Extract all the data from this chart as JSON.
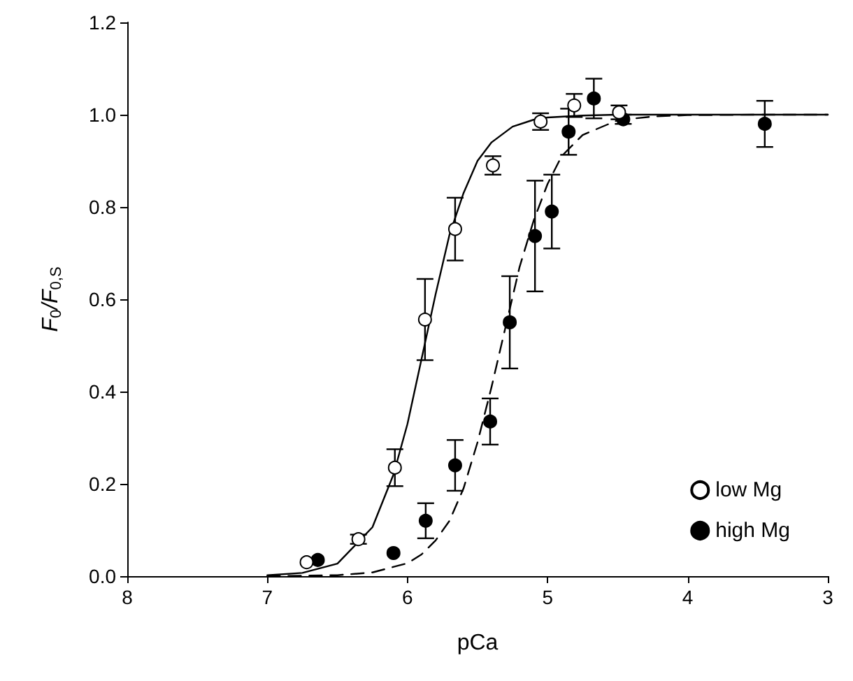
{
  "chart_data": {
    "type": "scatter",
    "xlabel": "pCa",
    "ylabel": "F$_{0}$/F$_{0,S}$",
    "xlim": [
      8,
      3
    ],
    "xticks": [
      8,
      7,
      6,
      5,
      4,
      3
    ],
    "ylim": [
      0,
      1.2
    ],
    "yticks": [
      {
        "value": 0,
        "label": "0.0"
      },
      0.2,
      0.4,
      0.6,
      0.8,
      {
        "value": 1,
        "label": "1.0"
      },
      1.2
    ],
    "grid": false,
    "legend": "bottom right",
    "marker": "circle",
    "series": [
      {
        "name": "low Mg",
        "color": "#ffffff",
        "x": [
          6.72,
          6.35,
          6.09,
          5.875,
          5.66,
          5.39,
          5.05,
          4.81,
          4.49
        ],
        "values": [
          0.03,
          0.08,
          0.235,
          0.556,
          0.752,
          0.89,
          0.985,
          1.02,
          1.005
        ],
        "errors": [
          null,
          0.01,
          0.04,
          0.088,
          0.068,
          0.02,
          0.018,
          0.025,
          0.015
        ]
      },
      {
        "name": "high Mg",
        "color": "#000000",
        "x": [
          6.64,
          6.1,
          5.87,
          5.66,
          5.41,
          5.27,
          5.09,
          4.97,
          4.85,
          4.67,
          4.46,
          3.45
        ],
        "values": [
          0.035,
          0.05,
          0.12,
          0.24,
          0.335,
          0.55,
          0.737,
          0.79,
          0.963,
          1.035,
          0.99,
          0.98
        ],
        "errors": [
          null,
          null,
          0.038,
          0.055,
          0.05,
          0.1,
          0.12,
          0.08,
          0.05,
          0.043,
          0.01,
          0.05
        ]
      },
      {
        "type": "line",
        "color": "#000000",
        "marker": "none",
        "line_style": "solid",
        "x": [
          7,
          6.75,
          6.5,
          6.25,
          6.1,
          6.0,
          5.9,
          5.8,
          5.7,
          5.6,
          5.5,
          5.4,
          5.25,
          5.1,
          5.0,
          4.75,
          4.5,
          4,
          3.5,
          3
        ],
        "values": [
          0.002,
          0.007,
          0.027,
          0.106,
          0.22,
          0.33,
          0.47,
          0.61,
          0.74,
          0.83,
          0.9,
          0.94,
          0.974,
          0.989,
          0.994,
          0.998,
          1,
          1,
          1,
          1
        ]
      },
      {
        "type": "line",
        "color": "#000000",
        "marker": "none",
        "line_style": "dashed",
        "x": [
          7,
          6.5,
          6.25,
          6.0,
          5.9,
          5.8,
          5.7,
          5.6,
          5.5,
          5.4,
          5.3,
          5.2,
          5.1,
          5.0,
          4.9,
          4.75,
          4.5,
          4.25,
          4,
          3.5,
          3
        ],
        "values": [
          0,
          0.002,
          0.008,
          0.028,
          0.047,
          0.077,
          0.12,
          0.19,
          0.29,
          0.41,
          0.54,
          0.67,
          0.77,
          0.85,
          0.91,
          0.956,
          0.988,
          0.996,
          0.999,
          1,
          1
        ]
      }
    ]
  }
}
